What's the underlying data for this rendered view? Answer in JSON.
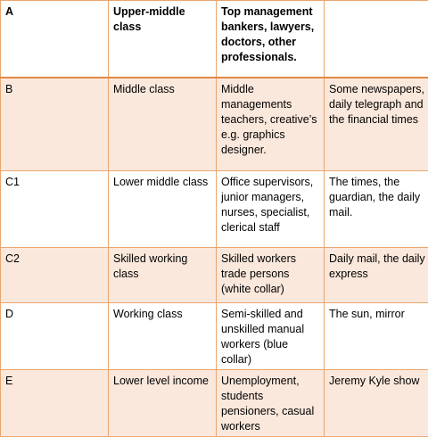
{
  "table": {
    "rows": [
      {
        "grade": "A",
        "social_class": "Upper-middle class",
        "occupations": "Top management bankers, lawyers, doctors, other professionals.",
        "media": ""
      },
      {
        "grade": "B",
        "social_class": "Middle class",
        "occupations": "Middle managements teachers, creative’s e.g. graphics designer.",
        "media": "Some newspapers, daily telegraph and the financial times"
      },
      {
        "grade": "C1",
        "social_class": "Lower middle class",
        "occupations": "Office supervisors, junior managers, nurses, specialist, clerical staff",
        "media": "The times, the guardian, the daily mail."
      },
      {
        "grade": "C2",
        "social_class": "Skilled working class",
        "occupations": "Skilled workers trade persons (white collar)",
        "media": "Daily mail, the daily express"
      },
      {
        "grade": "D",
        "social_class": "Working class",
        "occupations": "Semi-skilled and unskilled manual workers (blue collar)",
        "media": "The sun, mirror"
      },
      {
        "grade": "E",
        "social_class": "Lower level income",
        "occupations": "Unemployment, students pensioners, casual workers",
        "media": "Jeremy Kyle show"
      }
    ]
  },
  "colors": {
    "border": "#e8a56f",
    "header_rule": "#e08a46",
    "shaded_row": "#fbe8dc",
    "plain_row": "#ffffff"
  }
}
